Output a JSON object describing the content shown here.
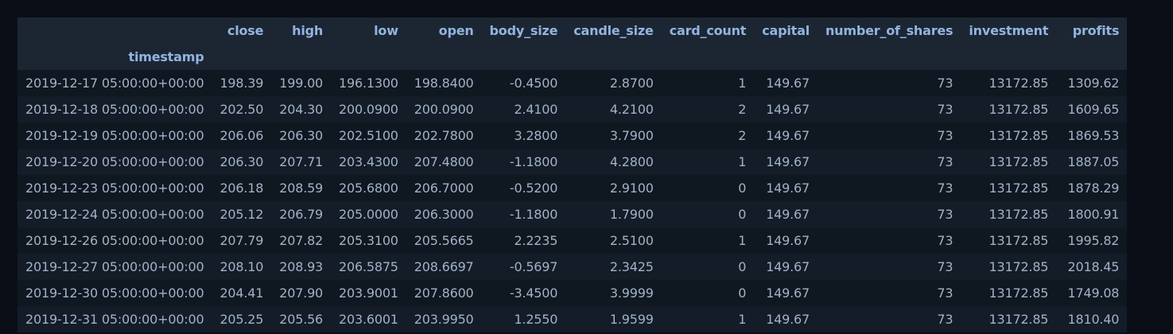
{
  "table": {
    "index_name": "timestamp",
    "columns": [
      "close",
      "high",
      "low",
      "open",
      "body_size",
      "candle_size",
      "card_count",
      "capital",
      "number_of_shares",
      "investment",
      "profits"
    ],
    "rows": [
      {
        "index": "2019-12-17 05:00:00+00:00",
        "cells": [
          "198.39",
          "199.00",
          "196.1300",
          "198.8400",
          "-0.4500",
          "2.8700",
          "1",
          "149.67",
          "73",
          "13172.85",
          "1309.62"
        ]
      },
      {
        "index": "2019-12-18 05:00:00+00:00",
        "cells": [
          "202.50",
          "204.30",
          "200.0900",
          "200.0900",
          "2.4100",
          "4.2100",
          "2",
          "149.67",
          "73",
          "13172.85",
          "1609.65"
        ]
      },
      {
        "index": "2019-12-19 05:00:00+00:00",
        "cells": [
          "206.06",
          "206.30",
          "202.5100",
          "202.7800",
          "3.2800",
          "3.7900",
          "2",
          "149.67",
          "73",
          "13172.85",
          "1869.53"
        ]
      },
      {
        "index": "2019-12-20 05:00:00+00:00",
        "cells": [
          "206.30",
          "207.71",
          "203.4300",
          "207.4800",
          "-1.1800",
          "4.2800",
          "1",
          "149.67",
          "73",
          "13172.85",
          "1887.05"
        ]
      },
      {
        "index": "2019-12-23 05:00:00+00:00",
        "cells": [
          "206.18",
          "208.59",
          "205.6800",
          "206.7000",
          "-0.5200",
          "2.9100",
          "0",
          "149.67",
          "73",
          "13172.85",
          "1878.29"
        ]
      },
      {
        "index": "2019-12-24 05:00:00+00:00",
        "cells": [
          "205.12",
          "206.79",
          "205.0000",
          "206.3000",
          "-1.1800",
          "1.7900",
          "0",
          "149.67",
          "73",
          "13172.85",
          "1800.91"
        ]
      },
      {
        "index": "2019-12-26 05:00:00+00:00",
        "cells": [
          "207.79",
          "207.82",
          "205.3100",
          "205.5665",
          "2.2235",
          "2.5100",
          "1",
          "149.67",
          "73",
          "13172.85",
          "1995.82"
        ]
      },
      {
        "index": "2019-12-27 05:00:00+00:00",
        "cells": [
          "208.10",
          "208.93",
          "206.5875",
          "208.6697",
          "-0.5697",
          "2.3425",
          "0",
          "149.67",
          "73",
          "13172.85",
          "2018.45"
        ]
      },
      {
        "index": "2019-12-30 05:00:00+00:00",
        "cells": [
          "204.41",
          "207.90",
          "203.9001",
          "207.8600",
          "-3.4500",
          "3.9999",
          "0",
          "149.67",
          "73",
          "13172.85",
          "1749.08"
        ]
      },
      {
        "index": "2019-12-31 05:00:00+00:00",
        "cells": [
          "205.25",
          "205.56",
          "203.6001",
          "203.9950",
          "1.2550",
          "1.9599",
          "1",
          "149.67",
          "73",
          "13172.85",
          "1810.40"
        ]
      }
    ]
  }
}
